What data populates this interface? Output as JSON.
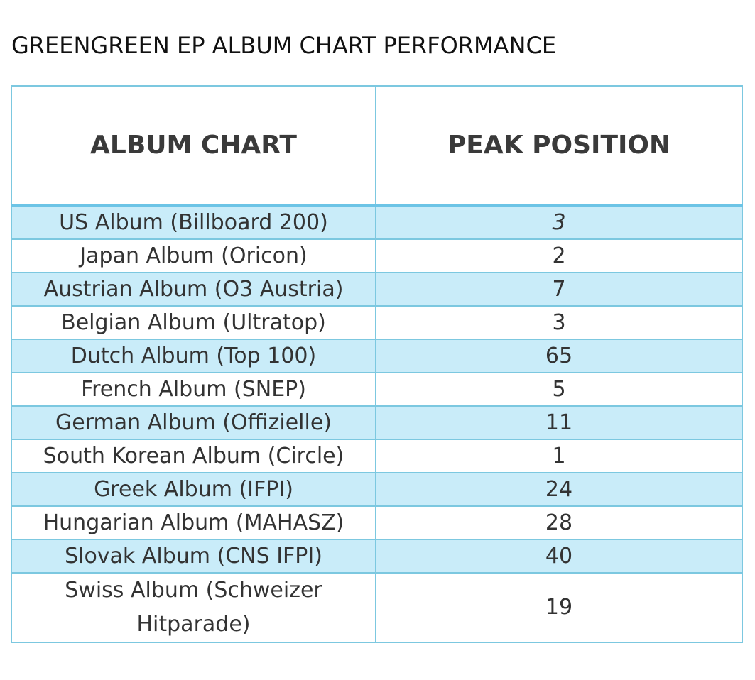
{
  "title": "GREENGREEN EP ALBUM CHART PERFORMANCE",
  "colors": {
    "border": "#7cc8e0",
    "row_shade": "#c9ecf9"
  },
  "table": {
    "headers": [
      "ALBUM CHART",
      "PEAK POSITION"
    ],
    "rows": [
      {
        "chart": "US Album (Billboard 200)",
        "peak": "3",
        "italic": true
      },
      {
        "chart": "Japan Album (Oricon)",
        "peak": "2"
      },
      {
        "chart": "Austrian Album (O3 Austria)",
        "peak": "7"
      },
      {
        "chart": "Belgian Album (Ultratop)",
        "peak": "3"
      },
      {
        "chart": "Dutch Album (Top 100)",
        "peak": "65"
      },
      {
        "chart": "French Album (SNEP)",
        "peak": "5"
      },
      {
        "chart": "German Album (Offizielle)",
        "peak": "11"
      },
      {
        "chart": "South Korean Album (Circle)",
        "peak": "1"
      },
      {
        "chart": "Greek Album (IFPI)",
        "peak": "24"
      },
      {
        "chart": "Hungarian Album (MAHASZ)",
        "peak": "28"
      },
      {
        "chart": "Slovak Album (CNS IFPI)",
        "peak": "40"
      },
      {
        "chart": "Swiss Album (Schweizer Hitparade)",
        "peak": "19"
      }
    ]
  }
}
